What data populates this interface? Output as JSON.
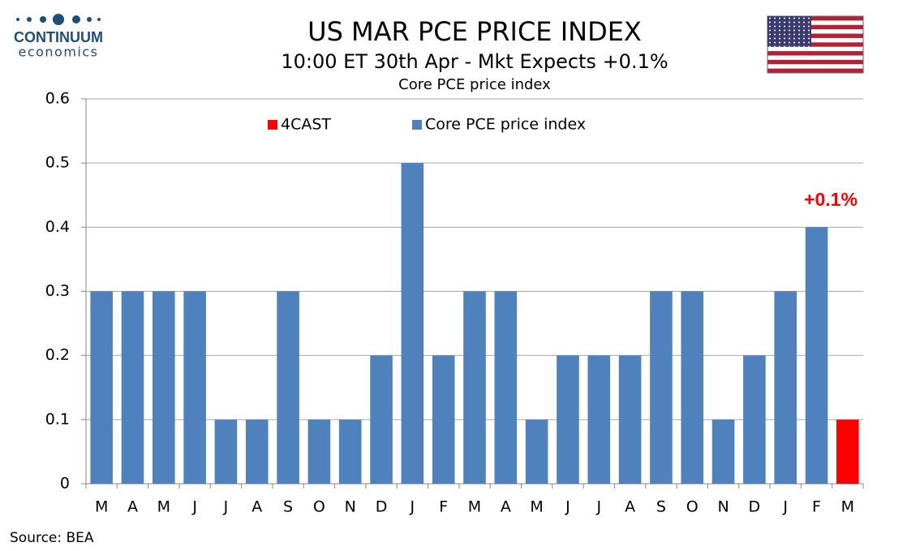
{
  "chart_data": {
    "type": "bar",
    "logo": {
      "name": "CONTINUUM",
      "tagline": "economics"
    },
    "title": "US MAR PCE PRICE INDEX",
    "subtitle": "10:00 ET 30th Apr - Mkt Expects +0.1%",
    "chart_title": "Core PCE price index",
    "categories": [
      "M",
      "A",
      "M",
      "J",
      "J",
      "A",
      "S",
      "O",
      "N",
      "D",
      "J",
      "F",
      "M",
      "A",
      "M",
      "J",
      "J",
      "A",
      "S",
      "O",
      "N",
      "D",
      "J",
      "F",
      "M"
    ],
    "series": [
      {
        "name": "4CAST",
        "color": "#ff0000",
        "values": [
          null,
          null,
          null,
          null,
          null,
          null,
          null,
          null,
          null,
          null,
          null,
          null,
          null,
          null,
          null,
          null,
          null,
          null,
          null,
          null,
          null,
          null,
          null,
          null,
          0.1
        ]
      },
      {
        "name": "Core PCE price index",
        "color": "#4f81bd",
        "values": [
          0.3,
          0.3,
          0.3,
          0.3,
          0.1,
          0.1,
          0.3,
          0.1,
          0.1,
          0.2,
          0.5,
          0.2,
          0.3,
          0.3,
          0.1,
          0.2,
          0.2,
          0.2,
          0.3,
          0.3,
          0.1,
          0.2,
          0.3,
          0.4,
          null
        ]
      }
    ],
    "annotation": "+0.1%",
    "ylim": [
      0,
      0.6
    ],
    "yticks": [
      0,
      0.1,
      0.2,
      0.3,
      0.4,
      0.5,
      0.6
    ],
    "grid": true,
    "source": "Source: BEA"
  }
}
